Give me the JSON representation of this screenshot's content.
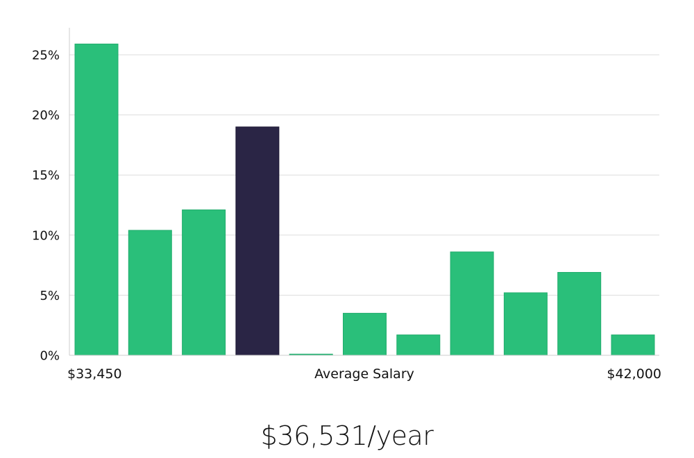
{
  "chart_data": {
    "type": "bar",
    "xlabel": "Average Salary",
    "x_min_label": "$33,450",
    "x_max_label": "$42,000",
    "y_ticks": [
      "0%",
      "5%",
      "10%",
      "15%",
      "20%",
      "25%"
    ],
    "ylim": [
      0,
      27
    ],
    "grid": true,
    "values": [
      25.9,
      10.4,
      12.1,
      19.0,
      0.1,
      3.5,
      1.7,
      8.6,
      5.2,
      6.9,
      1.7
    ],
    "highlight_index": 3,
    "colors": {
      "bar": "#2abf7a",
      "bar_stroke": "#22ad6d",
      "highlight": "#2a2545",
      "grid": "#dddddd",
      "axis": "#cccccc"
    }
  },
  "summary": {
    "average_salary": "$36,531/year"
  }
}
